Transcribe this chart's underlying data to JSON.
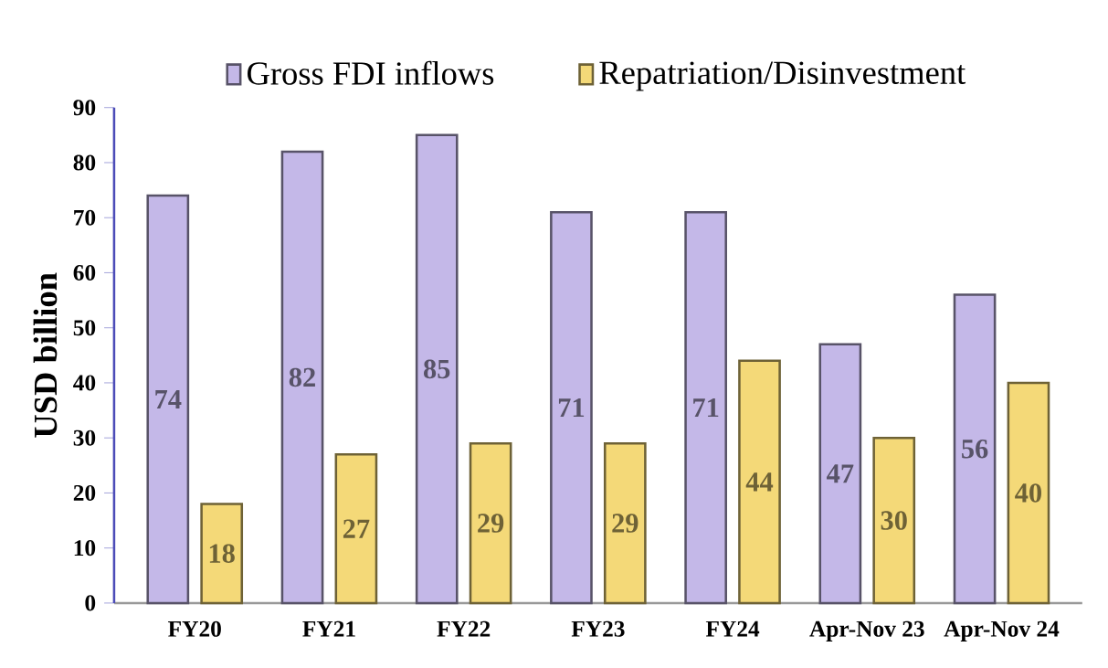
{
  "chart_data": {
    "type": "bar",
    "ylabel": "USD billion",
    "categories": [
      "FY20",
      "FY21",
      "FY22",
      "FY23",
      "FY24",
      "Apr-Nov 23",
      "Apr-Nov 24"
    ],
    "series": [
      {
        "name": "Gross FDI inflows",
        "color": "#c4b8e8",
        "values": [
          74,
          82,
          85,
          71,
          71,
          47,
          56
        ]
      },
      {
        "name": "Repatriation/Disinvestment",
        "color": "#f4d978",
        "values": [
          18,
          27,
          29,
          29,
          44,
          30,
          40
        ]
      }
    ],
    "ylim": [
      0,
      90
    ],
    "yticks": [
      0,
      10,
      20,
      30,
      40,
      50,
      60,
      70,
      80,
      90
    ],
    "data_labels": true,
    "legend": "top",
    "grid": false
  }
}
